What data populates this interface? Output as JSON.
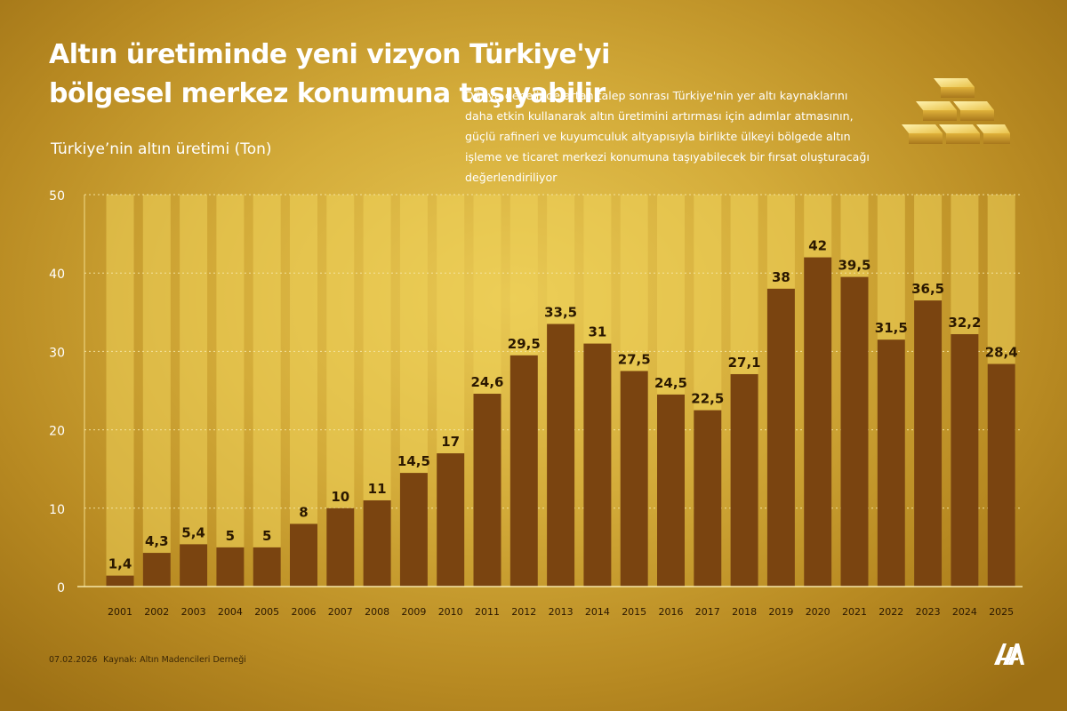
{
  "header": {
    "title": "Altın üretiminde yeni vizyon Türkiye'yi bölgesel merkez konumuna taşıyabilir",
    "description": "Dünya genelinde artan talep sonrası Türkiye'nin yer altı kaynaklarını daha etkin kullanarak altın üretimini artırması için adımlar atmasının, güçlü rafineri ve kuyumculuk altyapısıyla birlikte ülkeyi bölgede altın işleme ve ticaret merkezi konumuna taşıyabilecek bir fırsat oluşturacağı değerlendiriliyor"
  },
  "footer": {
    "date": "07.02.2026",
    "source": "Kaynak: Altın Madencileri Derneği"
  },
  "icons": {
    "decoration": "gold-bars-icon",
    "logo": "aa-logo-icon"
  },
  "colors": {
    "bar": "#7a4410",
    "bar_highlight": "#8f5418",
    "column_band": "#efd25a",
    "text_dark": "#2b1800",
    "title": "#ffffff"
  },
  "chart_data": {
    "type": "bar",
    "title": "Türkiye’nin altın üretimi (Ton)",
    "xlabel": "",
    "ylabel": "",
    "ylim": [
      0,
      50
    ],
    "yticks": [
      0,
      10,
      20,
      30,
      40,
      50
    ],
    "grid": true,
    "categories": [
      "2001",
      "2002",
      "2003",
      "2004",
      "2005",
      "2006",
      "2007",
      "2008",
      "2009",
      "2010",
      "2011",
      "2012",
      "2013",
      "2014",
      "2015",
      "2016",
      "2017",
      "2018",
      "2019",
      "2020",
      "2021",
      "2022",
      "2023",
      "2024",
      "2025"
    ],
    "values": [
      1.4,
      4.3,
      5.4,
      5,
      5,
      8,
      10,
      11,
      14.5,
      17,
      24.6,
      29.5,
      33.5,
      31,
      27.5,
      24.5,
      22.5,
      27.1,
      38,
      42,
      39.5,
      31.5,
      36.5,
      32.2,
      28.4
    ],
    "value_labels": [
      "1,4",
      "4,3",
      "5,4",
      "5",
      "5",
      "8",
      "10",
      "11",
      "14,5",
      "17",
      "24,6",
      "29,5",
      "33,5",
      "31",
      "27,5",
      "24,5",
      "22,5",
      "27,1",
      "38",
      "42",
      "39,5",
      "31,5",
      "36,5",
      "32,2",
      "28,4"
    ]
  }
}
